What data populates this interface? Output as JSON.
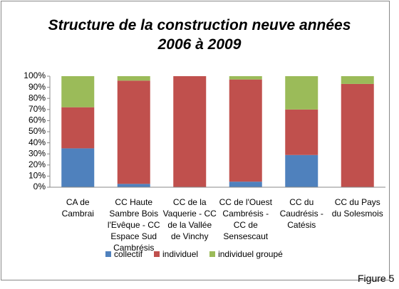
{
  "chart_data": {
    "type": "stacked_bar_100",
    "title": "Structure de la construction neuve années 2006 à 2009",
    "categories": [
      "CA de Cambrai",
      "CC Haute Sambre Bois l'Evêque - CC Espace Sud Cambrésis",
      "CC de la Vaquerie - CC de la Vallée de Vinchy",
      "CC de l'Ouest Cambrésis - CC de Sensescaut",
      "CC du Caudrésis - Catésis",
      "CC du Pays du Solesmois"
    ],
    "series": [
      {
        "name": "collectif",
        "color": "#4f81bd",
        "values": [
          35,
          3,
          0,
          5,
          29,
          0
        ]
      },
      {
        "name": "individuel",
        "color": "#c0504d",
        "values": [
          37,
          93,
          100,
          92,
          41,
          93
        ]
      },
      {
        "name": "individuel groupé",
        "color": "#9bbb59",
        "values": [
          28,
          4,
          0,
          3,
          30,
          7
        ]
      }
    ],
    "ylim": [
      0,
      100
    ],
    "yticks": [
      {
        "value": 0,
        "label": "0%"
      },
      {
        "value": 10,
        "label": "10%"
      },
      {
        "value": 20,
        "label": "20%"
      },
      {
        "value": 30,
        "label": "30%"
      },
      {
        "value": 40,
        "label": "40%"
      },
      {
        "value": 50,
        "label": "50%"
      },
      {
        "value": 60,
        "label": "60%"
      },
      {
        "value": 70,
        "label": "70%"
      },
      {
        "value": 80,
        "label": "80%"
      },
      {
        "value": 90,
        "label": "90%"
      },
      {
        "value": 100,
        "label": "100%"
      }
    ],
    "grid": false,
    "annotation": "Figure 5"
  }
}
